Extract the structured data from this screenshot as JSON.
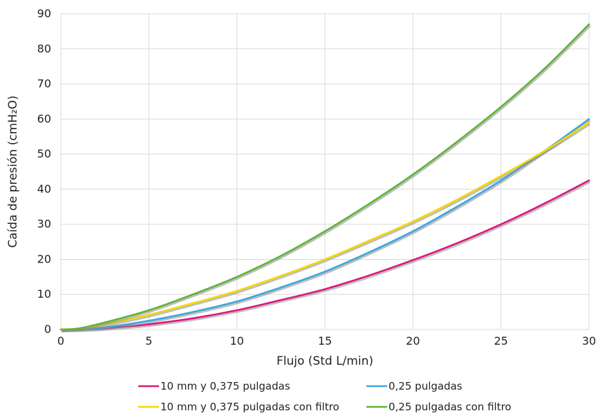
{
  "chart_data": {
    "type": "line",
    "xlabel": "Flujo (Std L/min)",
    "ylabel": "Caída de presión (cmH₂O)",
    "xlim": [
      0,
      30
    ],
    "ylim": [
      0,
      90
    ],
    "x_ticks": [
      "0",
      "5",
      "10",
      "15",
      "20",
      "25",
      "30"
    ],
    "y_ticks": [
      "0",
      "10",
      "20",
      "30",
      "40",
      "50",
      "60",
      "70",
      "80",
      "90"
    ],
    "grid": true,
    "legend_position": "bottom",
    "x": [
      0,
      1,
      2.5,
      5,
      7.5,
      10,
      12.5,
      15,
      17.5,
      20,
      22.5,
      25,
      27.5,
      30
    ],
    "series": [
      {
        "name": "10 mm y 0,375 pulgadas",
        "color": "#e0157f",
        "values": [
          0,
          0.1,
          0.4,
          1.5,
          3.2,
          5.5,
          8.4,
          11.5,
          15.4,
          19.8,
          24.6,
          30.0,
          36.0,
          42.5
        ]
      },
      {
        "name": "0,25 pulgadas",
        "color": "#38a8e0",
        "values": [
          0,
          0.1,
          0.6,
          2.5,
          5.0,
          8.0,
          12.0,
          16.5,
          22.0,
          28.0,
          35.0,
          42.5,
          51.0,
          60.0
        ]
      },
      {
        "name": "10 mm y 0,375 pulgadas con filtro",
        "color": "#f5d800",
        "values": [
          0,
          0.3,
          1.5,
          4.2,
          7.5,
          11.0,
          15.3,
          20.0,
          25.3,
          30.8,
          37.0,
          43.8,
          51.0,
          59.0
        ]
      },
      {
        "name": "0,25 pulgadas con filtro",
        "color": "#5cb536",
        "values": [
          0,
          0.3,
          2.0,
          5.5,
          10.0,
          15.0,
          21.0,
          28.0,
          35.8,
          44.2,
          53.5,
          63.5,
          74.5,
          87.0
        ]
      }
    ]
  }
}
